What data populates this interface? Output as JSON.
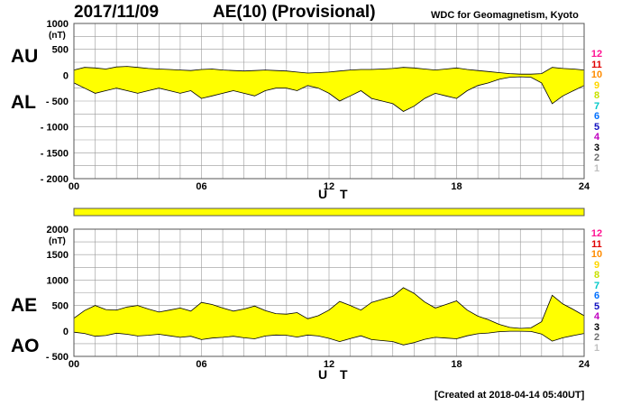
{
  "header": {
    "date": "2017/11/09",
    "title": "AE(10) (Provisional)",
    "source": "WDC for Geomagnetism, Kyoto"
  },
  "footer": {
    "created": "[Created at 2018-04-14 05:40UT]"
  },
  "colors": {
    "fill": "#ffff00",
    "grid": "#999999",
    "frame": "#555555",
    "trace": "#000000",
    "bar_fill": "#ffff00"
  },
  "station_legend": [
    {
      "label": "12",
      "color": "#ff1493"
    },
    {
      "label": "11",
      "color": "#e00000"
    },
    {
      "label": "10",
      "color": "#ff8c00"
    },
    {
      "label": "9",
      "color": "#ffd700"
    },
    {
      "label": "8",
      "color": "#c8e000"
    },
    {
      "label": "7",
      "color": "#00c8c8"
    },
    {
      "label": "6",
      "color": "#0070ff"
    },
    {
      "label": "5",
      "color": "#1010c0"
    },
    {
      "label": "4",
      "color": "#c000c0"
    },
    {
      "label": "3",
      "color": "#000000"
    },
    {
      "label": "2",
      "color": "#707070"
    },
    {
      "label": "1",
      "color": "#c0c0c0"
    }
  ],
  "station_count_bar": {
    "note_hidden": "",
    "coverage": 1.0
  },
  "chart_data": [
    {
      "type": "area",
      "panel": "AU/AL",
      "series_labels": [
        "AU",
        "AL"
      ],
      "ylabel": "(nT)",
      "xlabel": "U T",
      "ylim": [
        -2000,
        1000
      ],
      "yticks": [
        1000,
        500,
        0,
        -500,
        -1000,
        -1500,
        -2000
      ],
      "ytick_labels": [
        "1000",
        "500",
        "0",
        "- 500",
        "- 1000",
        "- 1500",
        "- 2000"
      ],
      "xlim": [
        0,
        24
      ],
      "xticks": [
        0,
        6,
        12,
        18,
        24
      ],
      "xtick_labels": [
        "00",
        "06",
        "12",
        "18",
        "24"
      ],
      "grid": true,
      "series": [
        {
          "name": "AU",
          "x": [
            0,
            0.5,
            1,
            1.5,
            2,
            2.5,
            3,
            3.5,
            4,
            4.5,
            5,
            5.5,
            6,
            6.5,
            7,
            7.5,
            8,
            8.5,
            9,
            9.5,
            10,
            10.5,
            11,
            11.5,
            12,
            12.5,
            13,
            13.5,
            14,
            14.5,
            15,
            15.5,
            16,
            16.5,
            17,
            17.5,
            18,
            18.5,
            19,
            19.5,
            20,
            20.5,
            21,
            21.5,
            22,
            22.5,
            23,
            23.5,
            24
          ],
          "values": [
            100,
            150,
            140,
            120,
            160,
            170,
            150,
            130,
            120,
            110,
            100,
            90,
            110,
            120,
            100,
            90,
            80,
            90,
            100,
            90,
            80,
            60,
            40,
            50,
            60,
            80,
            100,
            110,
            110,
            120,
            130,
            150,
            140,
            120,
            100,
            120,
            140,
            110,
            90,
            70,
            50,
            30,
            20,
            20,
            30,
            150,
            130,
            120,
            100
          ]
        },
        {
          "name": "AL",
          "x": [
            0,
            0.5,
            1,
            1.5,
            2,
            2.5,
            3,
            3.5,
            4,
            4.5,
            5,
            5.5,
            6,
            6.5,
            7,
            7.5,
            8,
            8.5,
            9,
            9.5,
            10,
            10.5,
            11,
            11.5,
            12,
            12.5,
            13,
            13.5,
            14,
            14.5,
            15,
            15.5,
            16,
            16.5,
            17,
            17.5,
            18,
            18.5,
            19,
            19.5,
            20,
            20.5,
            21,
            21.5,
            22,
            22.5,
            23,
            23.5,
            24
          ],
          "values": [
            -150,
            -250,
            -350,
            -300,
            -250,
            -300,
            -350,
            -300,
            -250,
            -300,
            -350,
            -300,
            -450,
            -400,
            -350,
            -300,
            -350,
            -400,
            -300,
            -250,
            -250,
            -300,
            -200,
            -250,
            -350,
            -500,
            -400,
            -300,
            -450,
            -500,
            -550,
            -700,
            -600,
            -450,
            -350,
            -400,
            -450,
            -300,
            -200,
            -150,
            -80,
            -40,
            -30,
            -40,
            -150,
            -550,
            -400,
            -300,
            -200
          ]
        }
      ]
    },
    {
      "type": "area",
      "panel": "AE/AO",
      "series_labels": [
        "AE",
        "AO"
      ],
      "ylabel": "(nT)",
      "xlabel": "U T",
      "ylim": [
        -500,
        2000
      ],
      "yticks": [
        2000,
        1500,
        1000,
        500,
        0,
        -500
      ],
      "ytick_labels": [
        "2000",
        "1500",
        "1000",
        "500",
        "0",
        "- 500"
      ],
      "xlim": [
        0,
        24
      ],
      "xticks": [
        0,
        6,
        12,
        18,
        24
      ],
      "xtick_labels": [
        "00",
        "06",
        "12",
        "18",
        "24"
      ],
      "grid": true,
      "series": [
        {
          "name": "AE",
          "x": [
            0,
            0.5,
            1,
            1.5,
            2,
            2.5,
            3,
            3.5,
            4,
            4.5,
            5,
            5.5,
            6,
            6.5,
            7,
            7.5,
            8,
            8.5,
            9,
            9.5,
            10,
            10.5,
            11,
            11.5,
            12,
            12.5,
            13,
            13.5,
            14,
            14.5,
            15,
            15.5,
            16,
            16.5,
            17,
            17.5,
            18,
            18.5,
            19,
            19.5,
            20,
            20.5,
            21,
            21.5,
            22,
            22.5,
            23,
            23.5,
            24
          ],
          "values": [
            250,
            400,
            500,
            420,
            410,
            470,
            500,
            430,
            370,
            410,
            450,
            390,
            560,
            520,
            450,
            390,
            430,
            490,
            400,
            340,
            330,
            360,
            240,
            300,
            410,
            580,
            500,
            410,
            560,
            620,
            680,
            850,
            740,
            570,
            450,
            520,
            590,
            410,
            290,
            220,
            130,
            70,
            50,
            60,
            180,
            700,
            530,
            420,
            300
          ]
        },
        {
          "name": "AO",
          "x": [
            0,
            0.5,
            1,
            1.5,
            2,
            2.5,
            3,
            3.5,
            4,
            4.5,
            5,
            5.5,
            6,
            6.5,
            7,
            7.5,
            8,
            8.5,
            9,
            9.5,
            10,
            10.5,
            11,
            11.5,
            12,
            12.5,
            13,
            13.5,
            14,
            14.5,
            15,
            15.5,
            16,
            16.5,
            17,
            17.5,
            18,
            18.5,
            19,
            19.5,
            20,
            20.5,
            21,
            21.5,
            22,
            22.5,
            23,
            23.5,
            24
          ],
          "values": [
            -25,
            -50,
            -105,
            -90,
            -45,
            -65,
            -100,
            -85,
            -65,
            -95,
            -125,
            -105,
            -170,
            -140,
            -125,
            -105,
            -135,
            -155,
            -100,
            -80,
            -85,
            -120,
            -80,
            -100,
            -145,
            -210,
            -150,
            -95,
            -170,
            -190,
            -210,
            -275,
            -230,
            -165,
            -125,
            -140,
            -155,
            -95,
            -55,
            -40,
            -15,
            -5,
            -5,
            -10,
            -60,
            -200,
            -135,
            -90,
            -50
          ]
        }
      ]
    }
  ]
}
